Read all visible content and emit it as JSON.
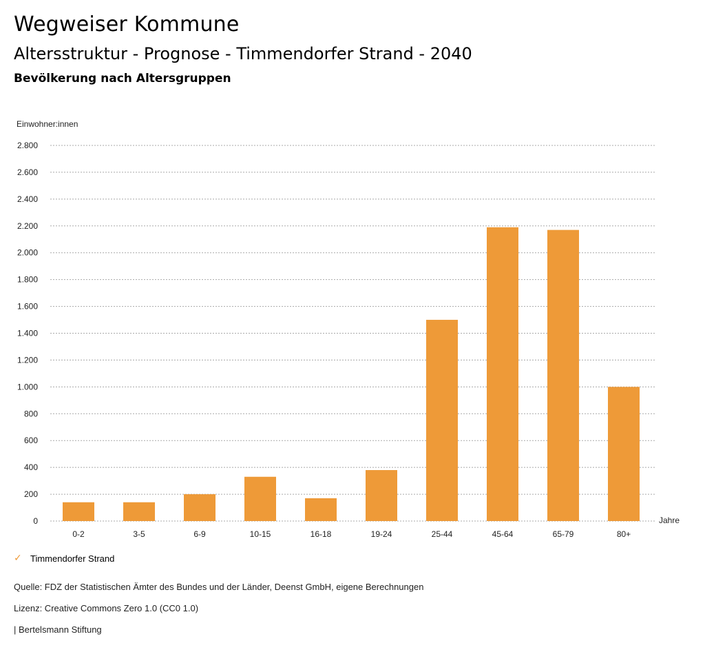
{
  "header": {
    "title": "Wegweiser Kommune",
    "subtitle": "Altersstruktur - Prognose - Timmendorfer Strand - 2040",
    "chart_heading": "Bevölkerung nach Altersgruppen"
  },
  "chart_data": {
    "type": "bar",
    "title": "Bevölkerung nach Altersgruppen",
    "ylabel": "Einwohner:innen",
    "xlabel": "Jahre",
    "ylim": [
      0,
      2800
    ],
    "yticks": [
      0,
      200,
      400,
      600,
      800,
      1000,
      1200,
      1400,
      1600,
      1800,
      2000,
      2200,
      2400,
      2600,
      2800
    ],
    "ytick_labels": [
      "0",
      "200",
      "400",
      "600",
      "800",
      "1.000",
      "1.200",
      "1.400",
      "1.600",
      "1.800",
      "2.000",
      "2.200",
      "2.400",
      "2.600",
      "2.800"
    ],
    "grid": true,
    "categories": [
      "0-2",
      "3-5",
      "6-9",
      "10-15",
      "16-18",
      "19-24",
      "25-44",
      "45-64",
      "65-79",
      "80+"
    ],
    "series": [
      {
        "name": "Timmendorfer Strand",
        "color": "#ee9a38",
        "values": [
          140,
          140,
          200,
          330,
          170,
          380,
          1500,
          2190,
          2170,
          1000
        ]
      }
    ]
  },
  "legend": {
    "items": [
      {
        "label": "Timmendorfer Strand",
        "icon": "check-icon",
        "color": "#ee9a38"
      }
    ]
  },
  "footer": {
    "source": "Quelle: FDZ der Statistischen Ämter des Bundes und der Länder, Deenst GmbH, eigene Berechnungen",
    "license": "Lizenz: Creative Commons Zero 1.0 (CC0 1.0)",
    "publisher": "| Bertelsmann Stiftung"
  }
}
